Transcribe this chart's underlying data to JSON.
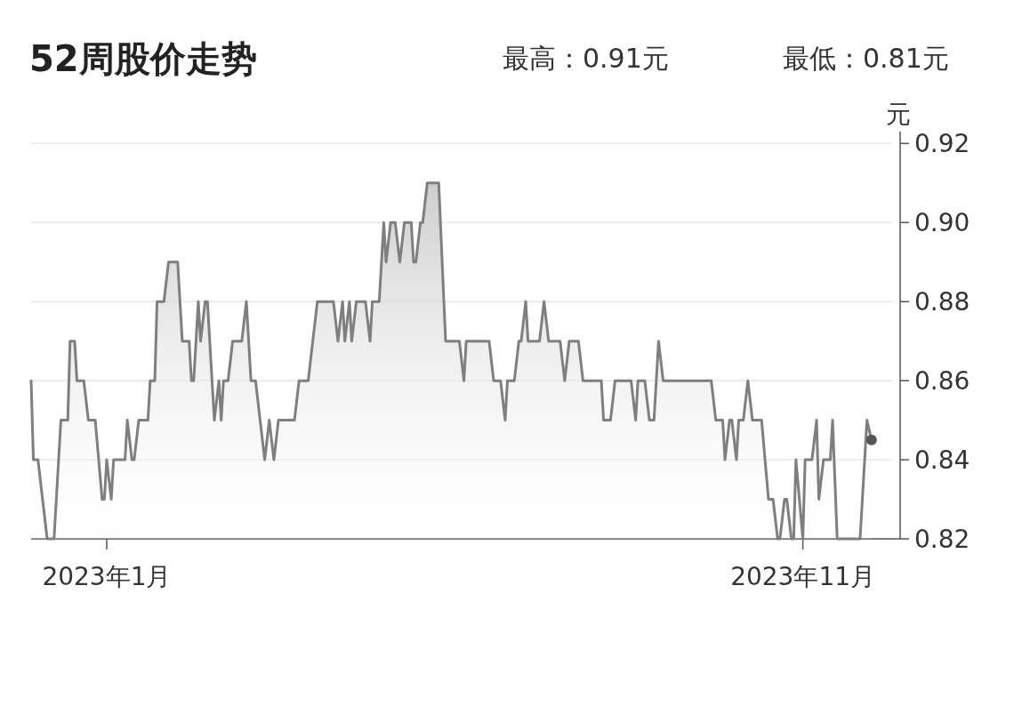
{
  "chart_data": {
    "type": "area",
    "title": "52周股价走势",
    "ylabel": "元",
    "annotations": [
      "最高：0.91元",
      "最低：0.81元"
    ],
    "x": [
      "2022-11-29",
      "2022-11-30",
      "2022-12-02",
      "2022-12-06",
      "2022-12-09",
      "2022-12-12",
      "2022-12-15",
      "2022-12-16",
      "2022-12-18",
      "2022-12-19",
      "2022-12-22",
      "2022-12-24",
      "2022-12-27",
      "2022-12-30",
      "2022-12-31",
      "2023-01-01",
      "2023-01-03",
      "2023-01-04",
      "2023-01-09",
      "2023-01-10",
      "2023-01-12",
      "2023-01-13",
      "2023-01-15",
      "2023-01-19",
      "2023-01-20",
      "2023-01-22",
      "2023-01-23",
      "2023-01-26",
      "2023-01-28",
      "2023-02-01",
      "2023-02-03",
      "2023-02-06",
      "2023-02-07",
      "2023-02-08",
      "2023-02-10",
      "2023-02-11",
      "2023-02-13",
      "2023-02-14",
      "2023-02-17",
      "2023-02-19",
      "2023-02-20",
      "2023-02-21",
      "2023-02-23",
      "2023-02-25",
      "2023-03-01",
      "2023-03-03",
      "2023-03-05",
      "2023-03-07",
      "2023-03-09",
      "2023-03-11",
      "2023-03-13",
      "2023-03-15",
      "2023-03-17",
      "2023-03-24",
      "2023-03-26",
      "2023-03-30",
      "2023-04-03",
      "2023-04-10",
      "2023-04-12",
      "2023-04-14",
      "2023-04-15",
      "2023-04-17",
      "2023-04-18",
      "2023-04-20",
      "2023-04-24",
      "2023-04-26",
      "2023-04-27",
      "2023-04-30",
      "2023-05-02",
      "2023-05-03",
      "2023-05-05",
      "2023-05-07",
      "2023-05-09",
      "2023-05-11",
      "2023-05-14",
      "2023-05-15",
      "2023-05-16",
      "2023-05-18",
      "2023-05-19",
      "2023-05-21",
      "2023-05-26",
      "2023-05-29",
      "2023-06-04",
      "2023-06-06",
      "2023-06-07",
      "2023-06-17",
      "2023-06-19",
      "2023-06-22",
      "2023-06-24",
      "2023-06-25",
      "2023-06-28",
      "2023-06-30",
      "2023-07-01",
      "2023-07-03",
      "2023-07-04",
      "2023-07-09",
      "2023-07-11",
      "2023-07-13",
      "2023-07-18",
      "2023-07-20",
      "2023-07-22",
      "2023-07-26",
      "2023-07-28",
      "2023-08-05",
      "2023-08-06",
      "2023-08-09",
      "2023-08-11",
      "2023-08-18",
      "2023-08-20",
      "2023-08-21",
      "2023-08-24",
      "2023-08-26",
      "2023-08-28",
      "2023-08-30",
      "2023-09-01",
      "2023-09-22",
      "2023-09-24",
      "2023-09-27",
      "2023-09-28",
      "2023-09-30",
      "2023-10-01",
      "2023-10-03",
      "2023-10-04",
      "2023-10-06",
      "2023-10-08",
      "2023-10-10",
      "2023-10-14",
      "2023-10-17",
      "2023-10-19",
      "2023-10-21",
      "2023-10-22",
      "2023-10-24",
      "2023-10-25",
      "2023-10-27",
      "2023-10-28",
      "2023-10-29",
      "2023-11-01",
      "2023-11-02",
      "2023-11-05",
      "2023-11-07",
      "2023-11-08",
      "2023-11-10",
      "2023-11-13",
      "2023-11-14",
      "2023-11-16",
      "2023-11-26",
      "2023-11-29",
      "2023-12-01"
    ],
    "series": [
      {
        "color": "#7f7f7f",
        "values": [
          0.86,
          0.84,
          0.84,
          0.82,
          0.82,
          0.85,
          0.85,
          0.87,
          0.87,
          0.86,
          0.86,
          0.85,
          0.85,
          0.83,
          0.83,
          0.84,
          0.83,
          0.84,
          0.84,
          0.85,
          0.84,
          0.84,
          0.85,
          0.85,
          0.86,
          0.86,
          0.88,
          0.88,
          0.89,
          0.89,
          0.87,
          0.87,
          0.86,
          0.86,
          0.88,
          0.87,
          0.88,
          0.88,
          0.85,
          0.86,
          0.85,
          0.86,
          0.86,
          0.87,
          0.87,
          0.88,
          0.86,
          0.86,
          0.85,
          0.84,
          0.85,
          0.84,
          0.85,
          0.85,
          0.86,
          0.86,
          0.88,
          0.88,
          0.87,
          0.88,
          0.87,
          0.88,
          0.87,
          0.88,
          0.88,
          0.87,
          0.88,
          0.88,
          0.9,
          0.89,
          0.9,
          0.9,
          0.89,
          0.9,
          0.9,
          0.89,
          0.89,
          0.9,
          0.9,
          0.91,
          0.91,
          0.87,
          0.87,
          0.86,
          0.87,
          0.87,
          0.86,
          0.86,
          0.85,
          0.86,
          0.86,
          0.87,
          0.87,
          0.88,
          0.87,
          0.87,
          0.88,
          0.87,
          0.87,
          0.86,
          0.87,
          0.87,
          0.86,
          0.86,
          0.85,
          0.85,
          0.86,
          0.86,
          0.85,
          0.86,
          0.86,
          0.85,
          0.85,
          0.87,
          0.86,
          0.86,
          0.85,
          0.85,
          0.84,
          0.85,
          0.85,
          0.84,
          0.85,
          0.85,
          0.86,
          0.85,
          0.85,
          0.83,
          0.83,
          0.82,
          0.82,
          0.83,
          0.83,
          0.82,
          0.82,
          0.84,
          0.82,
          0.84,
          0.84,
          0.85,
          0.83,
          0.84,
          0.84,
          0.85,
          0.82,
          0.82,
          0.85,
          0.845
        ]
      },
      {
        "type": "scatter",
        "color": "#555555",
        "marker": "circle",
        "x": [
          "2023-12-01"
        ],
        "values": [
          0.845
        ]
      }
    ],
    "xlim": [
      "2022-11-29",
      "2023-12-10"
    ],
    "xticks": [
      {
        "value": "2023-01-01",
        "label": "2023年1月"
      },
      {
        "value": "2023-11-01",
        "label": "2023年11月"
      }
    ],
    "ylim": [
      0.82,
      0.923
    ],
    "yticks": [
      0.82,
      0.84,
      0.86,
      0.88,
      {
        "value": 0.9,
        "label": "0.90"
      },
      0.92
    ],
    "grid": "y"
  }
}
